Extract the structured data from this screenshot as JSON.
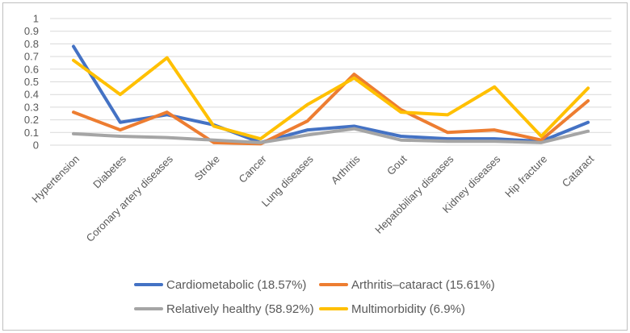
{
  "chart_data": {
    "type": "line",
    "title": "",
    "categories": [
      "Hypertension",
      "Diabetes",
      "Coronary artery diseases",
      "Stroke",
      "Cancer",
      "Lung diseases",
      "Arthritis",
      "Gout",
      "Hepatobiliary diseases",
      "Kidney diseases",
      "Hip fracture",
      "Cataract"
    ],
    "series": [
      {
        "name": "Cardiometabolic (18.57%)",
        "color": "#4472C4",
        "values": [
          0.78,
          0.18,
          0.24,
          0.16,
          0.02,
          0.12,
          0.15,
          0.07,
          0.05,
          0.05,
          0.03,
          0.18
        ]
      },
      {
        "name": "Arthritis–cataract (15.61%)",
        "color": "#ED7D31",
        "values": [
          0.26,
          0.12,
          0.26,
          0.02,
          0.01,
          0.19,
          0.56,
          0.28,
          0.1,
          0.12,
          0.04,
          0.35
        ]
      },
      {
        "name": "Relatively healthy (58.92%)",
        "color": "#A5A5A5",
        "values": [
          0.09,
          0.07,
          0.06,
          0.04,
          0.02,
          0.08,
          0.13,
          0.04,
          0.03,
          0.03,
          0.02,
          0.11
        ]
      },
      {
        "name": "Multimorbidity (6.9%)",
        "color": "#FFC000",
        "values": [
          0.67,
          0.4,
          0.69,
          0.15,
          0.05,
          0.32,
          0.53,
          0.26,
          0.24,
          0.46,
          0.07,
          0.45
        ]
      }
    ],
    "y_tick_labels": [
      "0",
      "0.1",
      "0.2",
      "0.3",
      "0.4",
      "0.5",
      "0.6",
      "0.7",
      "0.8",
      "0.9",
      "1"
    ],
    "ylim": [
      0,
      1
    ],
    "grid": true,
    "legend_position": "bottom-center",
    "axis_text_color": "#595959",
    "gridline_color": "#D9D9D9"
  }
}
